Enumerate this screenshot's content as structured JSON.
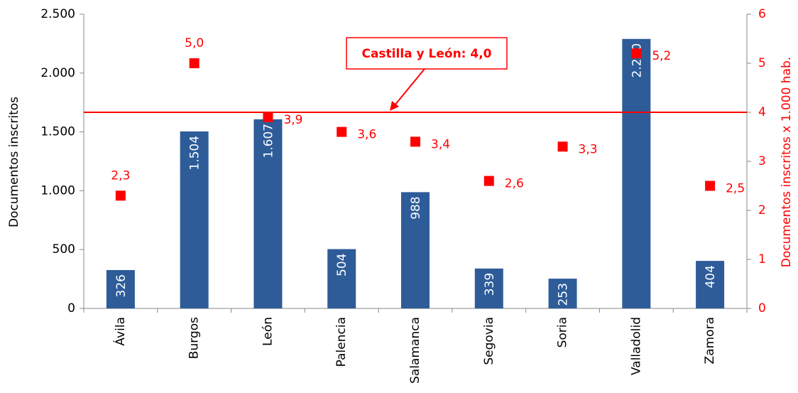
{
  "chart_data": {
    "type": "bar",
    "y_label": "Documentos inscritos",
    "y2_label": "Documentos inscritos x 1.000 hab.",
    "categories": [
      "Ávila",
      "Burgos",
      "León",
      "Palencia",
      "Salamanca",
      "Segovia",
      "Soria",
      "Valladolid",
      "Zamora"
    ],
    "series": [
      {
        "name": "Documentos inscritos",
        "type": "bar",
        "color": "#2e5c99",
        "values": [
          326,
          1504,
          1607,
          504,
          988,
          339,
          253,
          2290,
          404
        ],
        "value_labels": [
          "326",
          "1.504",
          "1.607",
          "504",
          "988",
          "339",
          "253",
          "2.290",
          "404"
        ]
      },
      {
        "name": "Documentos inscritos x 1.000 hab.",
        "type": "scatter",
        "axis": "y2",
        "color": "#ff0000",
        "values": [
          2.3,
          5.0,
          3.9,
          3.6,
          3.4,
          2.6,
          3.3,
          5.2,
          2.5
        ],
        "value_labels": [
          "2,3",
          "5,0",
          "3,9",
          "3,6",
          "3,4",
          "2,6",
          "3,3",
          "5,2",
          "2,5"
        ]
      }
    ],
    "reference": {
      "value": 4,
      "label": "Castilla y León: 4,0",
      "axis": "y2",
      "color": "#ff0000"
    },
    "ylim": [
      0,
      2500
    ],
    "yticks": [
      0,
      500,
      {
        "value": 1000,
        "label": "1.000"
      },
      {
        "value": 1500,
        "label": "1.500"
      },
      {
        "value": 2000,
        "label": "2.000"
      },
      {
        "value": 2500,
        "label": "2.500"
      }
    ],
    "y2lim": [
      0,
      6
    ],
    "y2ticks": [
      0,
      1,
      2,
      3,
      4,
      5,
      6
    ]
  }
}
